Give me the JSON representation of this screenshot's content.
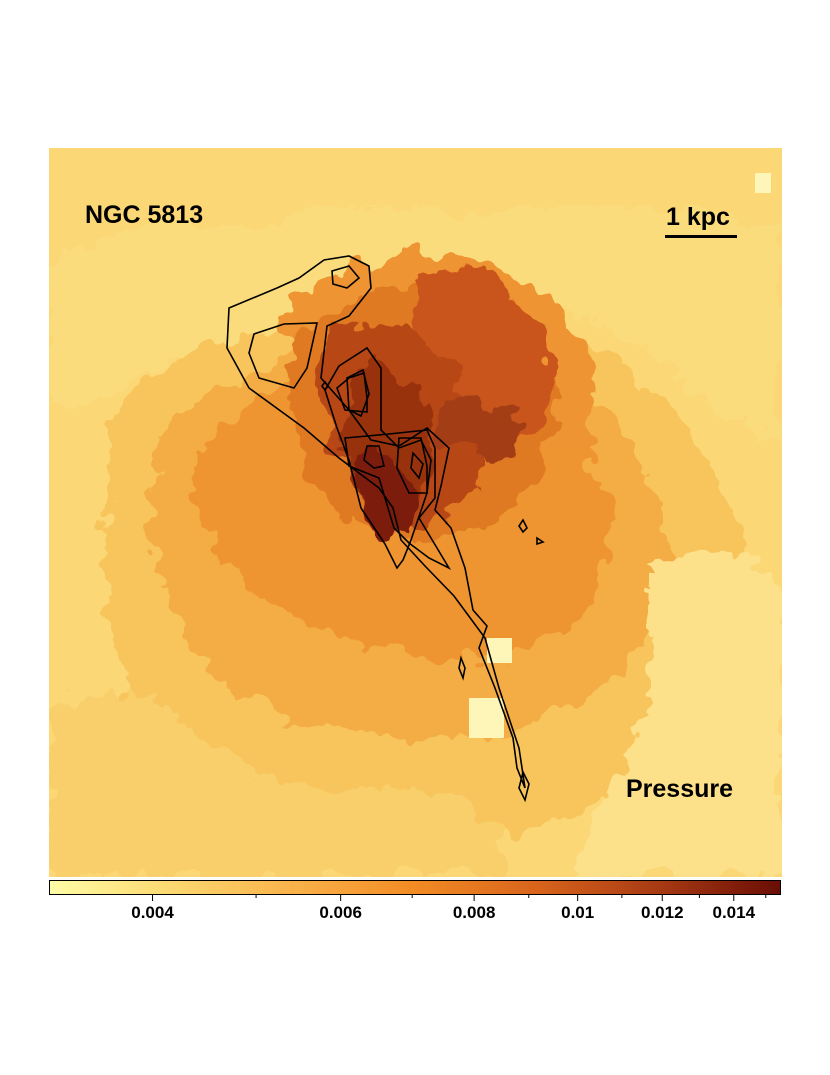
{
  "figure": {
    "object_name": "NGC 5813",
    "scale_label": "1 kpc",
    "quantity_label": "Pressure"
  },
  "colorbar": {
    "colormap": [
      "#fefca6",
      "#fcd870",
      "#f9b24a",
      "#f28b24",
      "#d8641c",
      "#a83a14",
      "#6a0e05"
    ],
    "tick_labels": [
      "0.004",
      "0.006",
      "0.008",
      "0.01",
      "0.012",
      "0.014"
    ],
    "tick_values": [
      0.004,
      0.006,
      0.008,
      0.01,
      0.012,
      0.014
    ]
  },
  "colors": {
    "map_background": "#fbd775",
    "contour_line": "#000000"
  }
}
